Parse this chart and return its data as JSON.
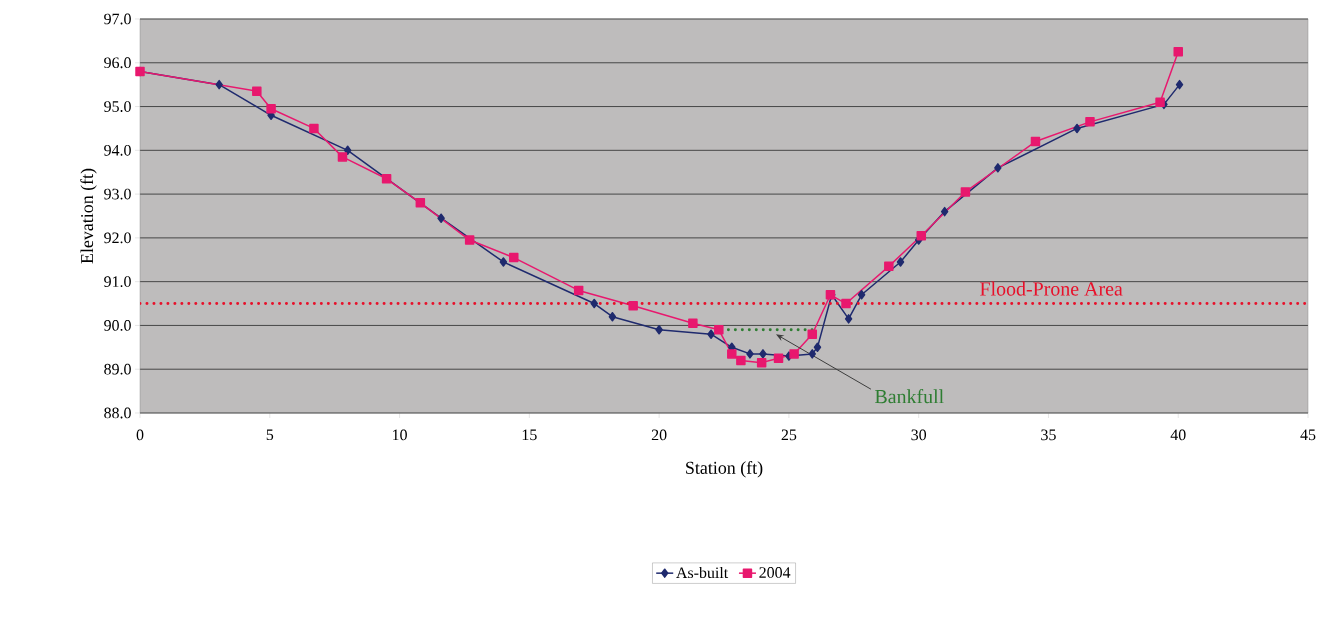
{
  "chart_data": {
    "type": "line",
    "xlabel": "Station (ft)",
    "ylabel": "Elevation (ft)",
    "xlim": [
      0,
      45
    ],
    "xticks": [
      0,
      5,
      10,
      15,
      20,
      25,
      30,
      35,
      40,
      45
    ],
    "ylim": [
      88,
      97
    ],
    "yticks": [
      {
        "value": 88,
        "label": "88.0"
      },
      {
        "value": 89,
        "label": "89.0"
      },
      {
        "value": 90,
        "label": "90.0"
      },
      {
        "value": 91,
        "label": "91.0"
      },
      {
        "value": 92,
        "label": "92.0"
      },
      {
        "value": 93,
        "label": "93.0"
      },
      {
        "value": 94,
        "label": "94.0"
      },
      {
        "value": 95,
        "label": "95.0"
      },
      {
        "value": 96,
        "label": "96.0"
      },
      {
        "value": 97,
        "label": "97.0"
      }
    ],
    "grid": "y",
    "legend": "bottom",
    "series": [
      {
        "name": "As-built",
        "color": "#1f2a6e",
        "marker": "diamond",
        "x": [
          0,
          3.05,
          5.05,
          8.0,
          11.6,
          14.0,
          17.5,
          18.2,
          20.0,
          22.0,
          22.8,
          23.5,
          24.0,
          25.0,
          25.9,
          26.1,
          26.65,
          27.3,
          27.8,
          29.3,
          30.0,
          31.0,
          33.05,
          36.1,
          39.45,
          40.05
        ],
        "values": [
          95.8,
          95.5,
          94.8,
          94.0,
          92.45,
          91.45,
          90.5,
          90.2,
          89.9,
          89.8,
          89.5,
          89.35,
          89.35,
          89.3,
          89.35,
          89.5,
          90.7,
          90.15,
          90.7,
          91.45,
          91.95,
          92.6,
          93.6,
          94.5,
          95.05,
          95.5
        ]
      },
      {
        "name": "2004",
        "color": "#e8186e",
        "marker": "square",
        "x": [
          0,
          4.5,
          5.05,
          6.7,
          7.8,
          9.5,
          10.8,
          12.7,
          14.4,
          16.9,
          19.0,
          21.3,
          22.3,
          22.8,
          23.15,
          23.95,
          24.6,
          25.2,
          25.9,
          26.6,
          27.2,
          28.85,
          30.1,
          31.8,
          34.5,
          36.6,
          39.3,
          40.0
        ],
        "values": [
          95.8,
          95.35,
          94.95,
          94.5,
          93.85,
          93.35,
          92.8,
          91.95,
          91.55,
          90.8,
          90.45,
          90.05,
          89.9,
          89.35,
          89.2,
          89.15,
          89.25,
          89.35,
          89.8,
          90.7,
          90.5,
          91.35,
          92.05,
          93.05,
          94.2,
          94.65,
          95.1,
          96.25
        ]
      },
      {
        "color": "#2e7d32",
        "marker": "none",
        "line_style": "dotted",
        "x": [
          22.4,
          25.9
        ],
        "values": [
          89.9,
          89.9
        ]
      }
    ],
    "ref_lines": [
      {
        "axis": "y",
        "value": 90.5,
        "label": "Flood-Prone Area",
        "color": "#e8102a",
        "line_style": "dotted"
      }
    ],
    "annotations": [
      {
        "text": "Bankfull",
        "x": 24.5,
        "y": 89.8
      }
    ]
  }
}
